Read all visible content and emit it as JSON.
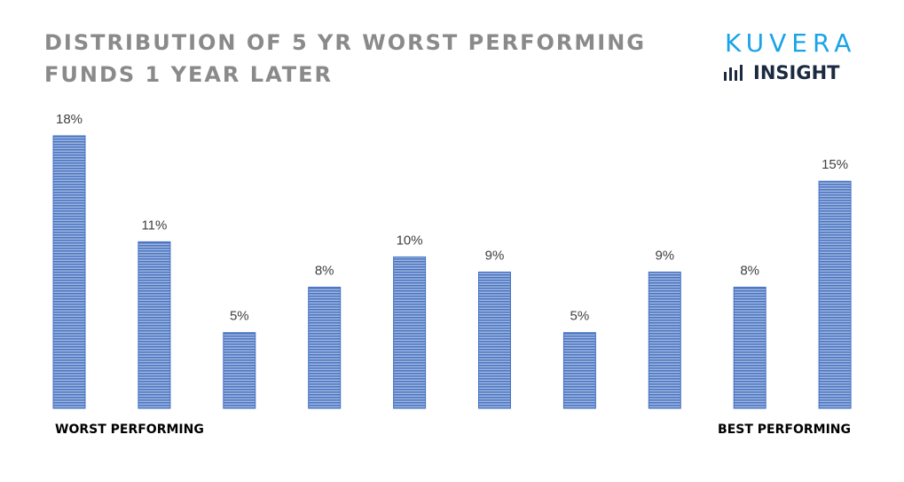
{
  "title": {
    "line1": "DISTRIBUTION OF 5 YR WORST PERFORMING",
    "line2": "FUNDS 1 YEAR LATER"
  },
  "logo": {
    "word": "KUVERA",
    "sub": "INSIGHT",
    "icon": "bar-chart-icon",
    "word_color": "#1aa3e8",
    "sub_color": "#1b2a40"
  },
  "chart_data": {
    "type": "bar",
    "categories": [
      "",
      "",
      "",
      "",
      "",
      "",
      "",
      "",
      "",
      ""
    ],
    "values": [
      18,
      11,
      5,
      8,
      10,
      9,
      5,
      9,
      8,
      15
    ],
    "labels": [
      "18%",
      "11%",
      "5%",
      "8%",
      "10%",
      "9%",
      "5%",
      "9%",
      "8%",
      "15%"
    ],
    "title": "DISTRIBUTION OF 5 YR WORST PERFORMING FUNDS 1 YEAR LATER",
    "xlabel": "",
    "ylabel": "",
    "ylim": [
      0,
      18
    ],
    "grid": false,
    "bar_color": "#4472c4",
    "x_start_label": "WORST PERFORMING",
    "x_end_label": "BEST PERFORMING"
  }
}
